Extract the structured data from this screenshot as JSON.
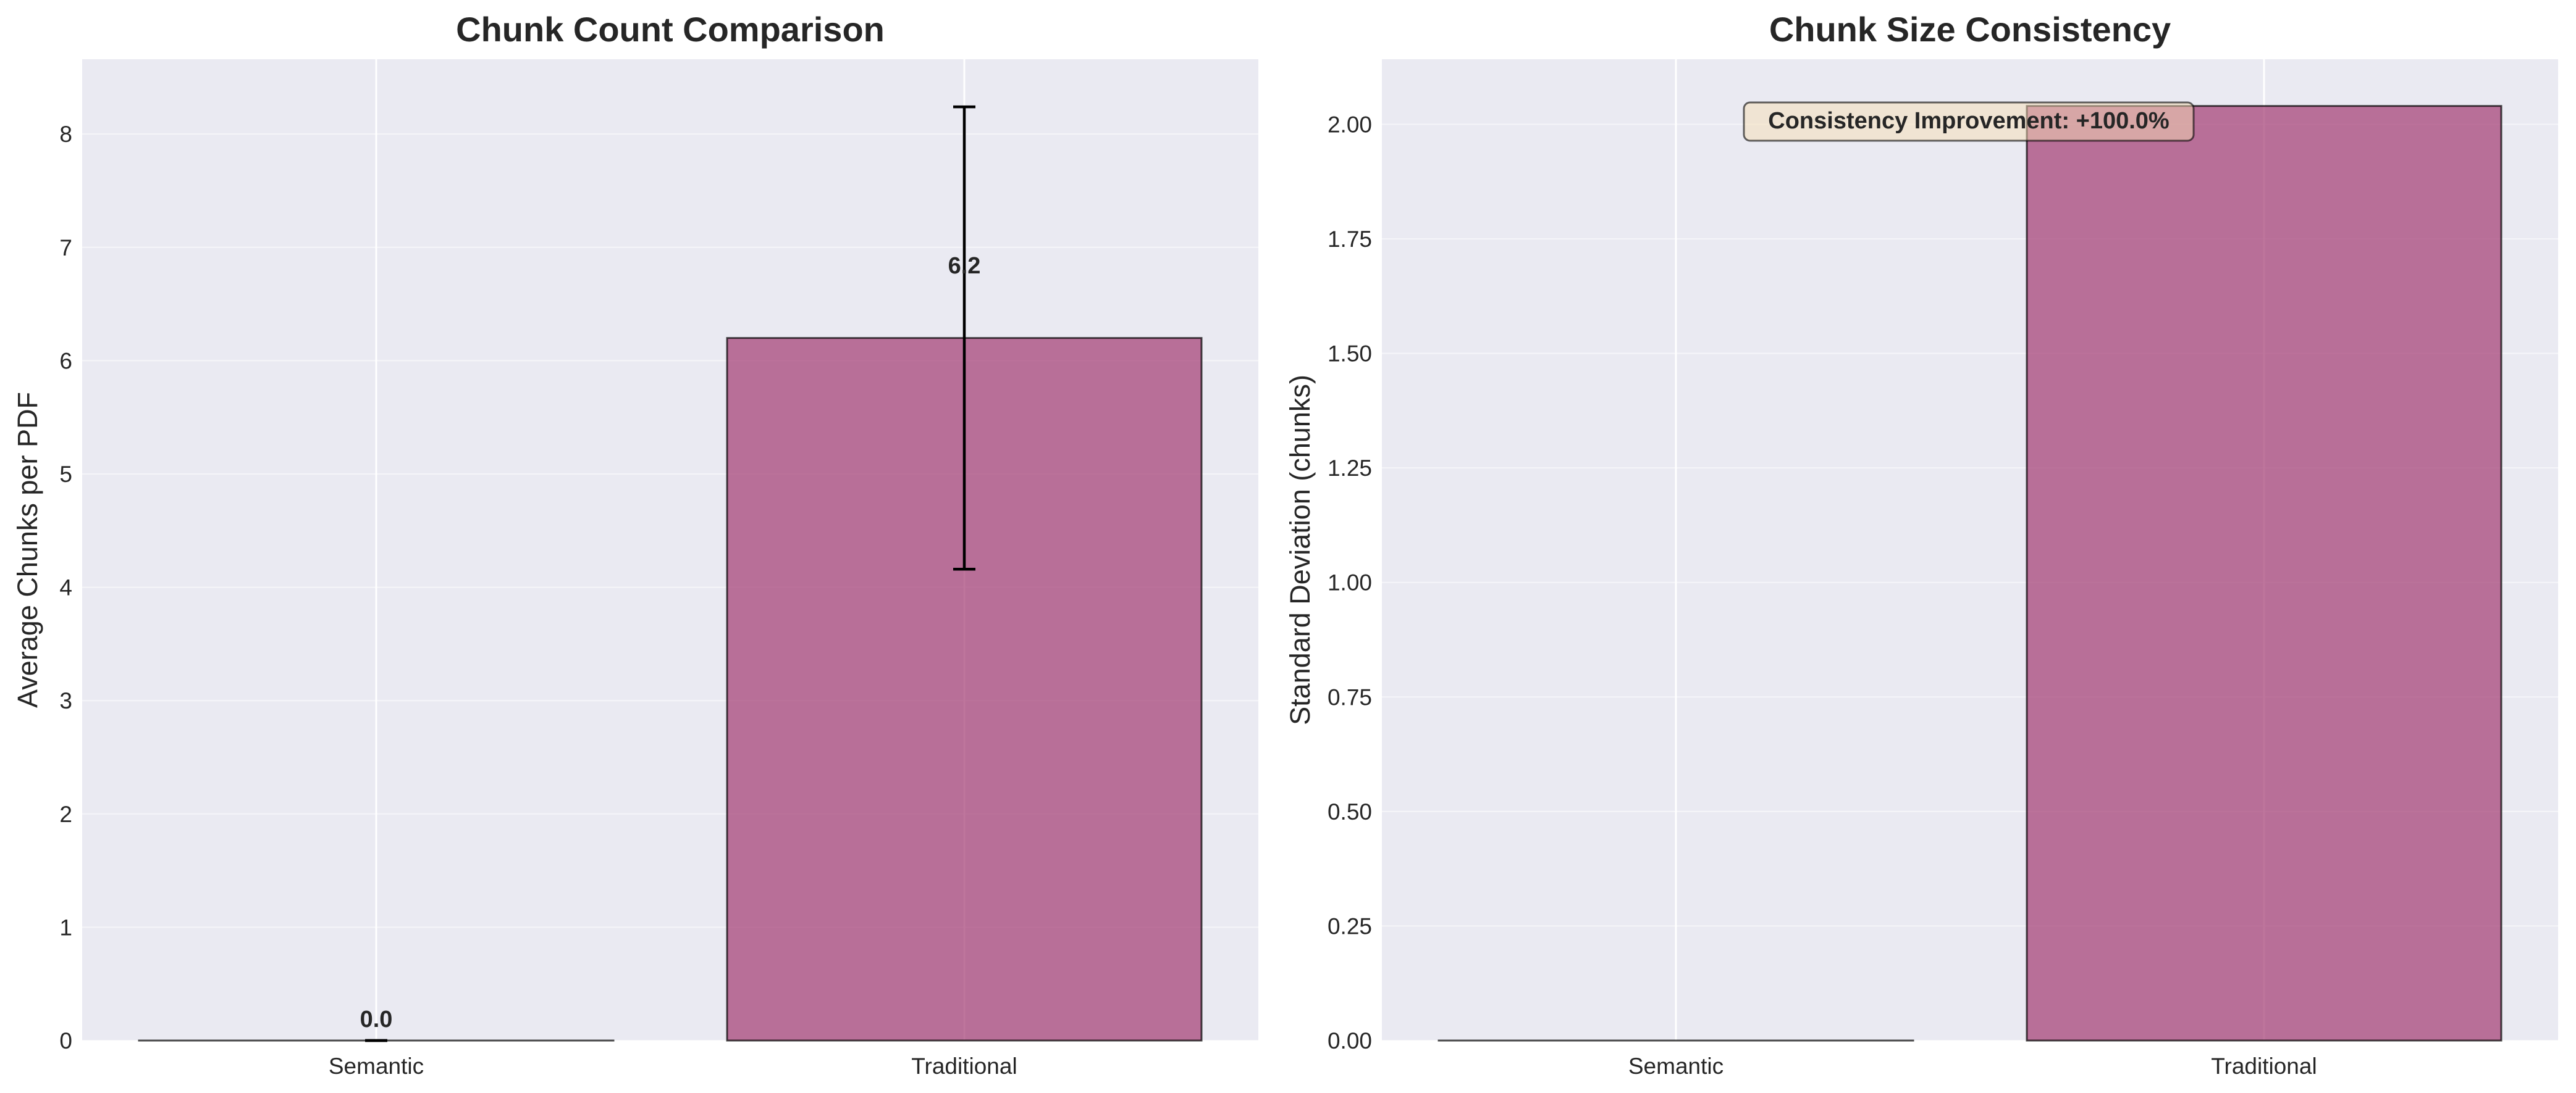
{
  "chart_data": [
    {
      "type": "bar",
      "title": "Chunk Count Comparison",
      "xlabel": "",
      "ylabel": "Average Chunks per PDF",
      "categories": [
        "Semantic",
        "Traditional"
      ],
      "values": [
        0.0,
        6.2
      ],
      "error_bars": [
        0.0,
        2.04
      ],
      "value_labels": [
        "0.0",
        "6.2"
      ],
      "ylim": [
        0,
        8.66
      ],
      "yticks": [
        0,
        1,
        2,
        3,
        4,
        5,
        6,
        7,
        8
      ],
      "ytick_labels": [
        "0",
        "1",
        "2",
        "3",
        "4",
        "5",
        "6",
        "7",
        "8"
      ],
      "grid": true,
      "colors": [
        "#2e86ab",
        "#a23b72"
      ]
    },
    {
      "type": "bar",
      "title": "Chunk Size Consistency",
      "xlabel": "",
      "ylabel": "Standard Deviation (chunks)",
      "categories": [
        "Semantic",
        "Traditional"
      ],
      "values": [
        0.0,
        2.04
      ],
      "ylim": [
        0,
        2.142
      ],
      "yticks": [
        0,
        0.25,
        0.5,
        0.75,
        1.0,
        1.25,
        1.5,
        1.75,
        2.0
      ],
      "ytick_labels": [
        "0.00",
        "0.25",
        "0.50",
        "0.75",
        "1.00",
        "1.25",
        "1.50",
        "1.75",
        "2.00"
      ],
      "annotation": "Consistency Improvement: +100.0%",
      "grid": true,
      "colors": [
        "#2e86ab",
        "#a23b72"
      ]
    }
  ]
}
